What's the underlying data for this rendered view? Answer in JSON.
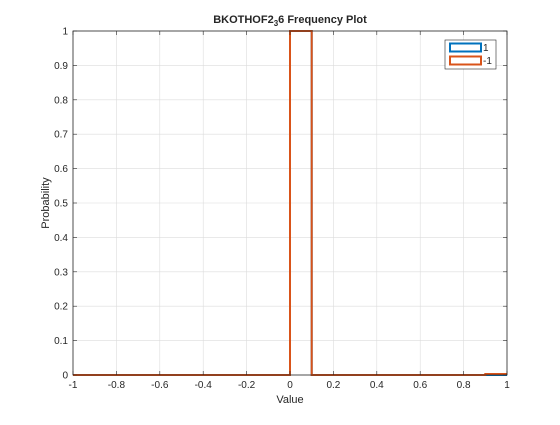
{
  "chart_data": {
    "type": "line",
    "title_main": "BKOTHOF2",
    "title_sub": "3",
    "title_end": "6 Frequency Plot",
    "xlabel": "Value",
    "ylabel": "Probability",
    "xlim": [
      -1,
      1
    ],
    "ylim": [
      0,
      1
    ],
    "grid": true,
    "legend_position": "top-right",
    "xticks": [
      -1,
      -0.8,
      -0.6,
      -0.4,
      -0.2,
      0,
      0.2,
      0.4,
      0.6,
      0.8,
      1
    ],
    "xtick_labels": [
      "-1",
      "-0.8",
      "-0.6",
      "-0.4",
      "-0.2",
      "0",
      "0.2",
      "0.4",
      "0.6",
      "0.8",
      "1"
    ],
    "yticks": [
      0,
      0.1,
      0.2,
      0.3,
      0.4,
      0.5,
      0.6,
      0.7,
      0.8,
      0.9,
      1
    ],
    "ytick_labels": [
      "0",
      "0.1",
      "0.2",
      "0.3",
      "0.4",
      "0.5",
      "0.6",
      "0.7",
      "0.8",
      "0.9",
      "1"
    ],
    "series": [
      {
        "name": "1",
        "color": "#0072BD",
        "points": [
          [
            -1,
            0
          ],
          [
            0,
            0
          ],
          [
            0,
            1
          ],
          [
            0.1,
            1
          ],
          [
            0.1,
            0
          ],
          [
            1,
            0
          ]
        ]
      },
      {
        "name": "-1",
        "color": "#D95319",
        "points": [
          [
            -1,
            0
          ],
          [
            0,
            0
          ],
          [
            0,
            1
          ],
          [
            0.1,
            1
          ],
          [
            0.1,
            0
          ],
          [
            0.9,
            0
          ],
          [
            0.9,
            0.003
          ],
          [
            1,
            0.003
          ]
        ]
      }
    ]
  }
}
